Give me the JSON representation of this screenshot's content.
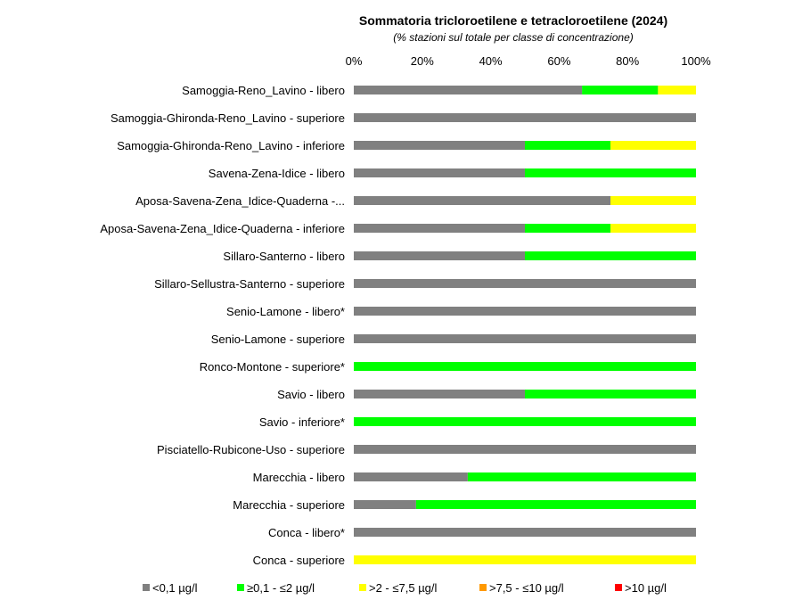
{
  "chart_data": {
    "type": "bar",
    "orientation": "horizontal",
    "stacked": "percent",
    "title": "Sommatoria tricloroetilene e tetracloroetilene (2024)",
    "subtitle": "(% stazioni sul totale per classe di concentrazione)",
    "xlim": [
      0,
      100
    ],
    "x_ticks": [
      "0%",
      "20%",
      "40%",
      "60%",
      "80%",
      "100%"
    ],
    "x_axis_position": "top",
    "legend_position": "bottom",
    "grid": false,
    "categories": [
      "Samoggia-Reno_Lavino - libero",
      "Samoggia-Ghironda-Reno_Lavino - superiore",
      "Samoggia-Ghironda-Reno_Lavino - inferiore",
      "Savena-Zena-Idice - libero",
      "Aposa-Savena-Zena_Idice-Quaderna -...",
      "Aposa-Savena-Zena_Idice-Quaderna - inferiore",
      "Sillaro-Santerno - libero",
      "Sillaro-Sellustra-Santerno - superiore",
      "Senio-Lamone - libero*",
      "Senio-Lamone - superiore",
      "Ronco-Montone - superiore*",
      "Savio - libero",
      "Savio - inferiore*",
      "Pisciatello-Rubicone-Uso - superiore",
      "Marecchia - libero",
      "Marecchia - superiore",
      "Conca - libero*",
      "Conca - superiore"
    ],
    "series": [
      {
        "name": "<0,1 µg/l",
        "color": "#808080",
        "values": [
          66.7,
          100,
          50,
          50,
          75,
          50,
          50,
          100,
          100,
          100,
          0,
          50,
          0,
          100,
          33.3,
          18.2,
          100,
          0
        ]
      },
      {
        "name": "≥0,1 - ≤2 µg/l",
        "color": "#00ff00",
        "values": [
          22.2,
          0,
          25,
          50,
          0,
          25,
          50,
          0,
          0,
          0,
          100,
          50,
          100,
          0,
          66.7,
          81.8,
          0,
          0
        ]
      },
      {
        "name": ">2 - ≤7,5 µg/l",
        "color": "#ffff00",
        "values": [
          11.1,
          0,
          25,
          0,
          25,
          25,
          0,
          0,
          0,
          0,
          0,
          0,
          0,
          0,
          0,
          0,
          0,
          100
        ]
      },
      {
        "name": ">7,5 - ≤10 µg/l",
        "color": "#ff9900",
        "values": [
          0,
          0,
          0,
          0,
          0,
          0,
          0,
          0,
          0,
          0,
          0,
          0,
          0,
          0,
          0,
          0,
          0,
          0
        ]
      },
      {
        "name": ">10 µg/l",
        "color": "#ff0000",
        "values": [
          0,
          0,
          0,
          0,
          0,
          0,
          0,
          0,
          0,
          0,
          0,
          0,
          0,
          0,
          0,
          0,
          0,
          0
        ]
      }
    ]
  }
}
